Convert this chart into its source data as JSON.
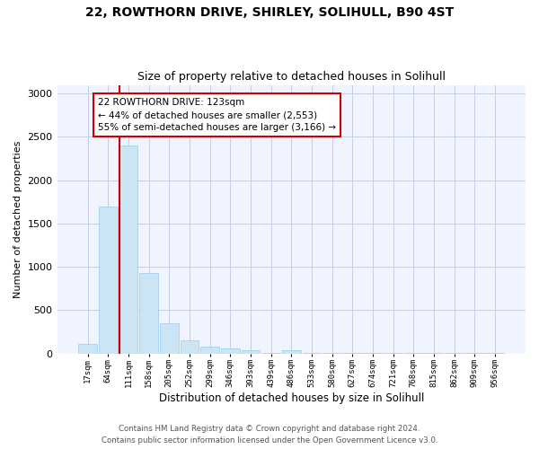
{
  "title1": "22, ROWTHORN DRIVE, SHIRLEY, SOLIHULL, B90 4ST",
  "title2": "Size of property relative to detached houses in Solihull",
  "xlabel": "Distribution of detached houses by size in Solihull",
  "ylabel": "Number of detached properties",
  "bar_color": "#cce5f5",
  "bar_edge_color": "#99ccee",
  "categories": [
    "17sqm",
    "64sqm",
    "111sqm",
    "158sqm",
    "205sqm",
    "252sqm",
    "299sqm",
    "346sqm",
    "393sqm",
    "439sqm",
    "486sqm",
    "533sqm",
    "580sqm",
    "627sqm",
    "674sqm",
    "721sqm",
    "768sqm",
    "815sqm",
    "862sqm",
    "909sqm",
    "956sqm"
  ],
  "values": [
    115,
    1700,
    2400,
    930,
    350,
    155,
    80,
    55,
    35,
    5,
    35,
    5,
    5,
    5,
    5,
    5,
    5,
    5,
    5,
    5,
    5
  ],
  "ylim": [
    0,
    3100
  ],
  "yticks": [
    0,
    500,
    1000,
    1500,
    2000,
    2500,
    3000
  ],
  "vline_bar_index": 2,
  "annotation_line1": "22 ROWTHORN DRIVE: 123sqm",
  "annotation_line2": "← 44% of detached houses are smaller (2,553)",
  "annotation_line3": "55% of semi-detached houses are larger (3,166) →",
  "annotation_box_color": "#ffffff",
  "annotation_box_edge": "#cc0000",
  "vline_color": "#cc0000",
  "footer1": "Contains HM Land Registry data © Crown copyright and database right 2024.",
  "footer2": "Contains public sector information licensed under the Open Government Licence v3.0.",
  "bg_color": "#f0f4ff",
  "grid_color": "#c8cce8"
}
